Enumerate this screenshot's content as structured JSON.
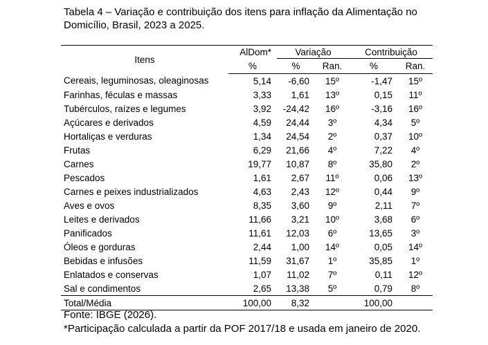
{
  "header": {
    "title": "Tabela 4 – Variação e contribuição dos itens para inflação da Alimentação no Domicílio, Brasil, 2023 a 2025."
  },
  "table": {
    "header_top": [
      "Itens",
      "AlDom*",
      "Variação",
      "Contribuição"
    ],
    "header_sub": [
      "%",
      "%",
      "Ran.",
      "%",
      "Ran."
    ],
    "rows": [
      [
        "Cereais, leguminosas, oleaginosas",
        "5,14",
        "-6,60",
        "15º",
        "-1,47",
        "15º"
      ],
      [
        "Farinhas, féculas e massas",
        "3,33",
        "1,61",
        "13º",
        "0,15",
        "11º"
      ],
      [
        "Tubérculos, raízes e legumes",
        "3,92",
        "-24,42",
        "16º",
        "-3,16",
        "16º"
      ],
      [
        "Açúcares e derivados",
        "4,59",
        "24,44",
        "3º",
        "4,34",
        "5º"
      ],
      [
        "Hortaliças e verduras",
        "1,34",
        "24,54",
        "2º",
        "0,37",
        "10º"
      ],
      [
        "Frutas",
        "6,29",
        "21,66",
        "4º",
        "7,22",
        "4º"
      ],
      [
        "Carnes",
        "19,77",
        "10,87",
        "8º",
        "35,80",
        "2º"
      ],
      [
        "Pescados",
        "1,61",
        "2,67",
        "11º",
        "0,06",
        "13º"
      ],
      [
        "Carnes e peixes industrializados",
        "4,63",
        "2,43",
        "12º",
        "0,44",
        "9º"
      ],
      [
        "Aves e ovos",
        "8,35",
        "3,60",
        "9º",
        "2,11",
        "7º"
      ],
      [
        "Leites e derivados",
        "11,66",
        "3,21",
        "10º",
        "3,68",
        "6º"
      ],
      [
        "Panificados",
        "11,61",
        "12,03",
        "6º",
        "13,65",
        "3º"
      ],
      [
        "Óleos e gorduras",
        "2,44",
        "1,00",
        "14º",
        "0,05",
        "14º"
      ],
      [
        "Bebidas e infusões",
        "11,59",
        "31,67",
        "1º",
        "35,85",
        "1º"
      ],
      [
        "Enlatados e conservas",
        "1,07",
        "11,02",
        "7º",
        "0,11",
        "12º"
      ],
      [
        "Sal e condimentos",
        "2,65",
        "13,38",
        "5º",
        "0,79",
        "8º"
      ]
    ],
    "total": {
      "label": "Total/Média",
      "aldom": "100,00",
      "variacao": "8,32",
      "contribuicao": "100,00"
    }
  },
  "notes": [
    "Fonte: IBGE (2026).",
    "*Participação calculada a partir da POF 2017/18 e usada em janeiro de 2020."
  ]
}
